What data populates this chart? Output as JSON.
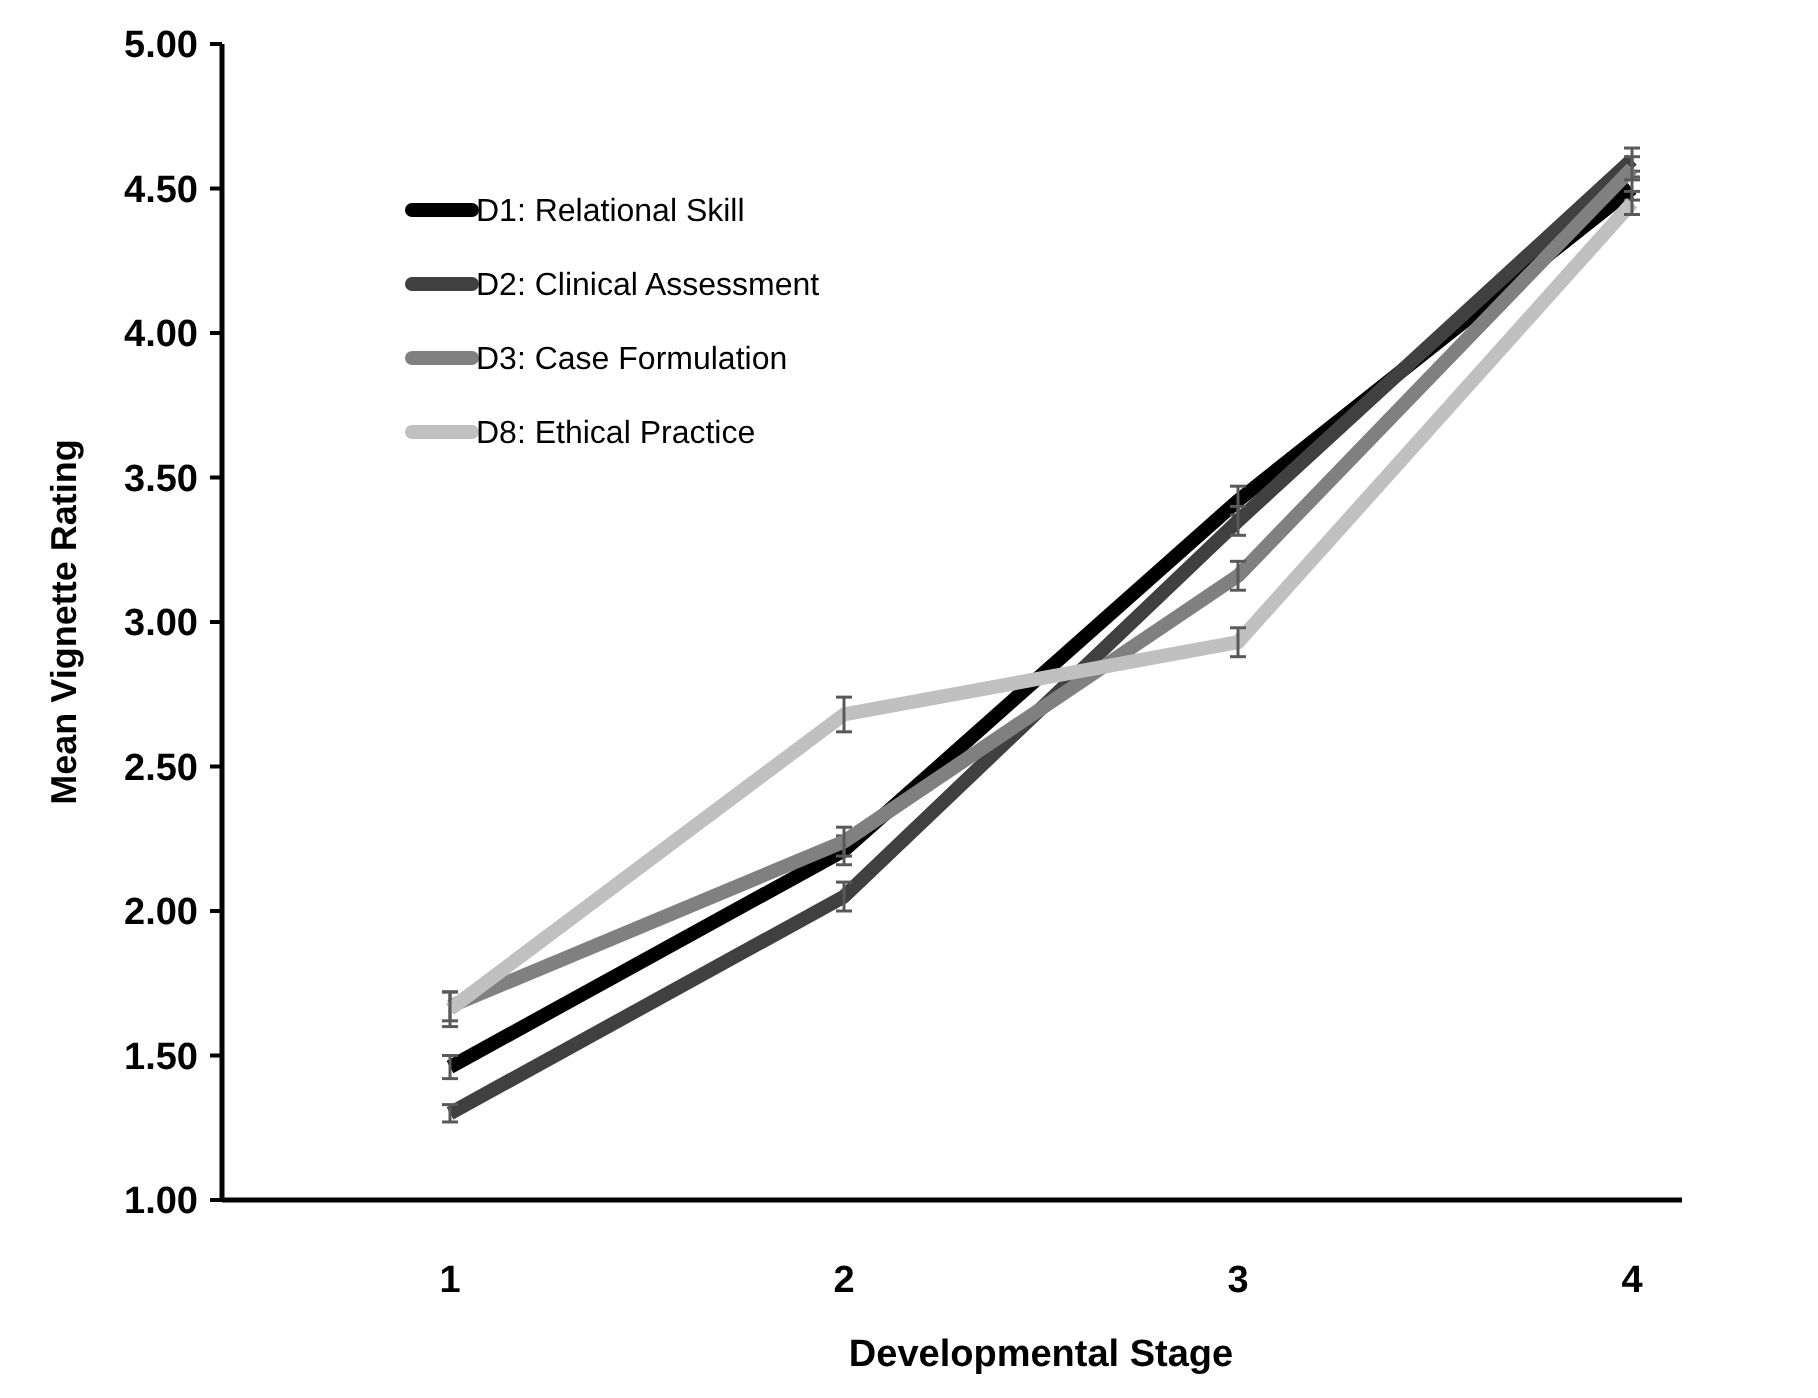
{
  "chart_data": {
    "type": "line",
    "xlabel": "Developmental Stage",
    "ylabel": "Mean Vignette Rating",
    "categories": [
      "1",
      "2",
      "3",
      "4"
    ],
    "ylim": [
      1,
      5
    ],
    "yticks": [
      {
        "value": 1,
        "label": "1.00"
      },
      {
        "value": 1.5,
        "label": "1.50"
      },
      {
        "value": 2,
        "label": "2.00"
      },
      {
        "value": 2.5,
        "label": "2.50"
      },
      {
        "value": 3,
        "label": "3.00"
      },
      {
        "value": 3.5,
        "label": "3.50"
      },
      {
        "value": 4,
        "label": "4.00"
      },
      {
        "value": 4.5,
        "label": "4.50"
      },
      {
        "value": 5,
        "label": "5.00"
      }
    ],
    "grid": false,
    "legend": "top left",
    "marker": "none",
    "line_style": "solid",
    "series": [
      {
        "name": "D1: Relational Skill",
        "color": "#000000",
        "values": [
          1.46,
          2.21,
          3.42,
          4.5
        ],
        "errors": [
          0.04,
          0.05,
          0.05,
          0.04
        ]
      },
      {
        "name": "D2: Clinical Assessment",
        "color": "#404040",
        "values": [
          1.3,
          2.05,
          3.35,
          4.6
        ],
        "errors": [
          0.03,
          0.05,
          0.05,
          0.04
        ]
      },
      {
        "name": "D3: Case Formulation",
        "color": "#808080",
        "values": [
          1.67,
          2.24,
          3.16,
          4.57
        ],
        "errors": [
          0.05,
          0.05,
          0.05,
          0.04
        ]
      },
      {
        "name": "D8: Ethical Practice",
        "color": "#c0c0c0",
        "values": [
          1.66,
          2.68,
          2.93,
          4.45
        ],
        "errors": [
          0.06,
          0.06,
          0.05,
          0.04
        ]
      }
    ]
  }
}
